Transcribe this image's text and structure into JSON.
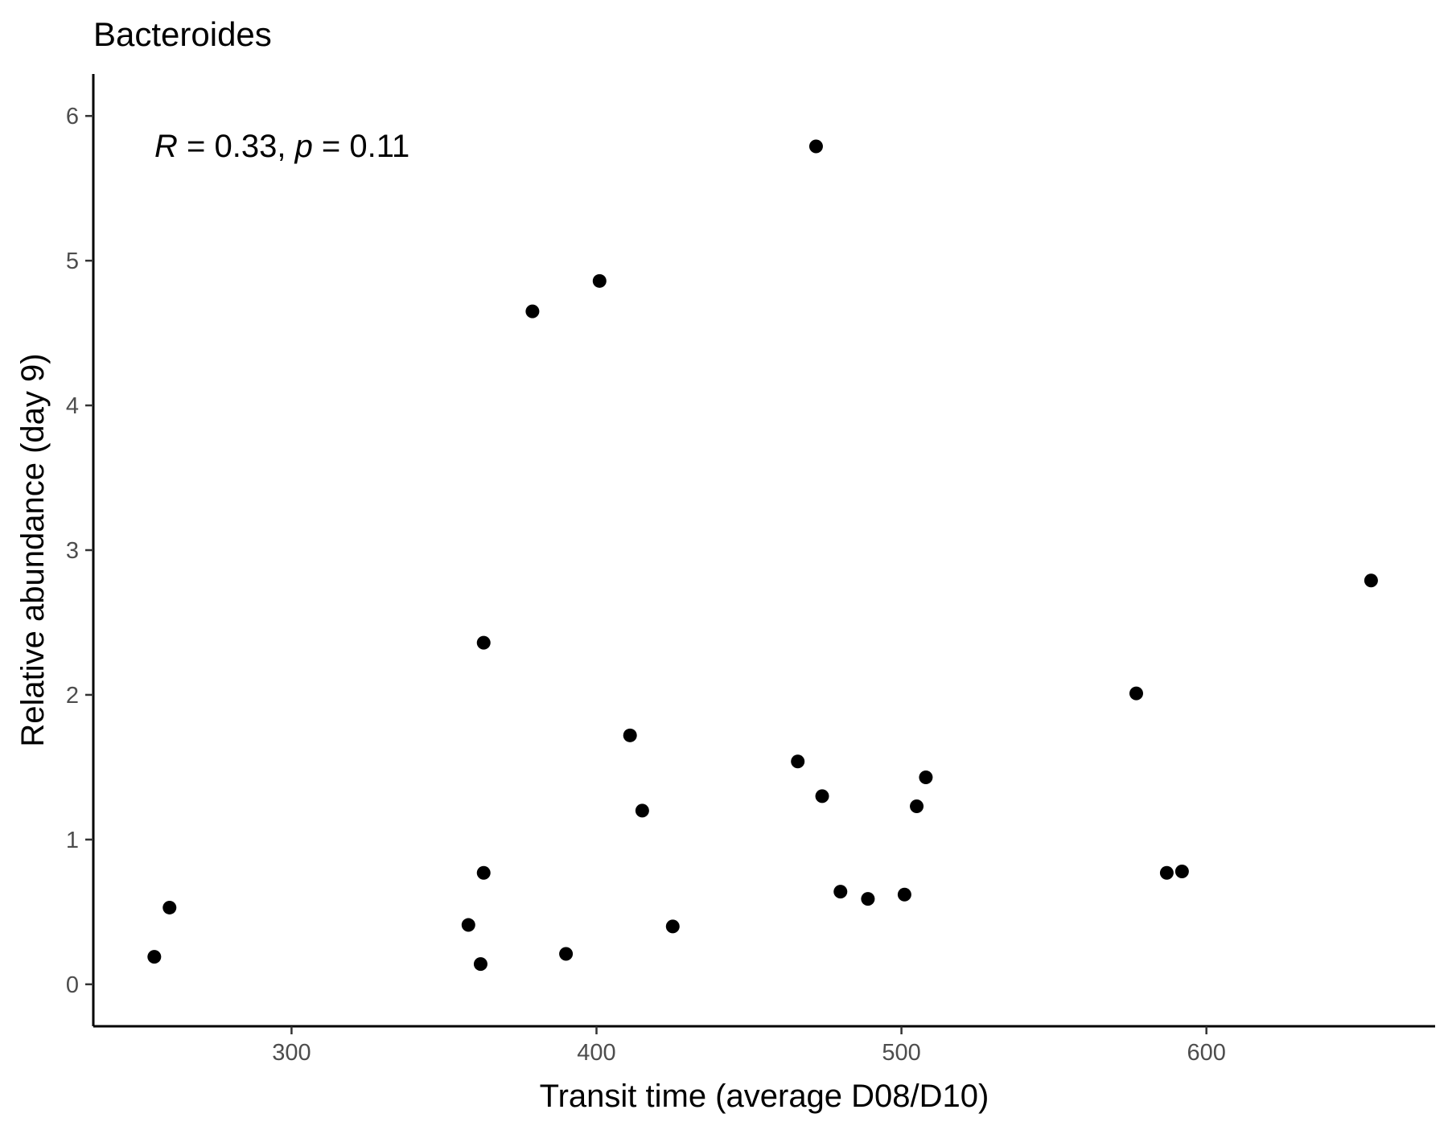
{
  "chart_data": {
    "type": "scatter",
    "title": "Bacteroides",
    "xlabel": "Transit time (average D08/D10)",
    "ylabel": "Relative abundance (day 9)",
    "xlim": [
      235,
      675
    ],
    "ylim": [
      -0.29,
      6.29
    ],
    "x_ticks": [
      "300",
      "400",
      "500",
      "600"
    ],
    "y_ticks": [
      "0",
      "1",
      "2",
      "3",
      "4",
      "5",
      "6"
    ],
    "grid": false,
    "annotation": {
      "R_label": "R",
      "R_value": " = 0.33, ",
      "p_label": "p",
      "p_value": " = 0.11"
    },
    "point_color": "#000000",
    "points": [
      {
        "x": 255,
        "y": 0.19
      },
      {
        "x": 260,
        "y": 0.53
      },
      {
        "x": 358,
        "y": 0.41
      },
      {
        "x": 362,
        "y": 0.14
      },
      {
        "x": 363,
        "y": 2.36
      },
      {
        "x": 363,
        "y": 0.77
      },
      {
        "x": 379,
        "y": 4.65
      },
      {
        "x": 390,
        "y": 0.21
      },
      {
        "x": 401,
        "y": 4.86
      },
      {
        "x": 411,
        "y": 1.72
      },
      {
        "x": 415,
        "y": 1.2
      },
      {
        "x": 425,
        "y": 0.4
      },
      {
        "x": 466,
        "y": 1.54
      },
      {
        "x": 472,
        "y": 5.79
      },
      {
        "x": 474,
        "y": 1.3
      },
      {
        "x": 480,
        "y": 0.64
      },
      {
        "x": 489,
        "y": 0.59
      },
      {
        "x": 501,
        "y": 0.62
      },
      {
        "x": 505,
        "y": 1.23
      },
      {
        "x": 508,
        "y": 1.43
      },
      {
        "x": 577,
        "y": 2.01
      },
      {
        "x": 587,
        "y": 0.77
      },
      {
        "x": 592,
        "y": 0.78
      },
      {
        "x": 654,
        "y": 2.79
      }
    ]
  }
}
